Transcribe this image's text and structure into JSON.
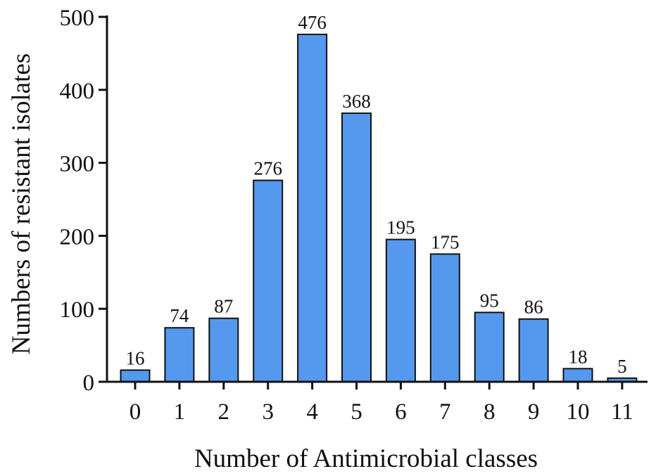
{
  "chart_data": {
    "type": "bar",
    "title": "",
    "xlabel": "Number of Antimicrobial classes",
    "ylabel": "Numbers  of resistant  isolates",
    "categories": [
      "0",
      "1",
      "2",
      "3",
      "4",
      "5",
      "6",
      "7",
      "8",
      "9",
      "10",
      "11"
    ],
    "values": [
      16,
      74,
      87,
      276,
      476,
      368,
      195,
      175,
      95,
      86,
      18,
      5
    ],
    "data_labels": [
      "16",
      "74",
      "87",
      "276",
      "476",
      "368",
      "195",
      "175",
      "95",
      "86",
      "18",
      "5"
    ],
    "yticks": [
      0,
      100,
      200,
      300,
      400,
      500
    ],
    "ytick_labels": [
      "0",
      "100",
      "200",
      "300",
      "400",
      "500"
    ],
    "ylim": [
      0,
      500
    ],
    "grid": false,
    "legend": "none",
    "colors": {
      "bar_fill": "#5599EE",
      "bar_stroke": "#111111",
      "axis": "#111111"
    }
  }
}
